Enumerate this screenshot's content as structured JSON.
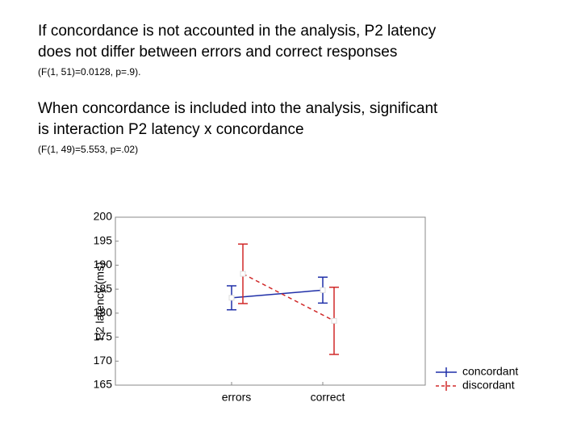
{
  "paragraphs": [
    {
      "lines": [
        "If concordance is not accounted in the analysis, P2 latency",
        "does not differ between errors and correct responses"
      ],
      "note": "(F(1, 51)=0.0128, p=.9)."
    },
    {
      "lines": [
        "When concordance is included into the analysis, significant",
        "is interaction P2 latency x concordance"
      ],
      "note": "(F(1, 49)=5.553, p=.02)"
    }
  ],
  "chart_data": {
    "type": "errorline",
    "y_label": "P2 latency (ms)",
    "categories": [
      "errors",
      "correct"
    ],
    "series": [
      {
        "name": "concordant",
        "color": "#1f2fa8",
        "dash": false,
        "values": [
          183.2,
          184.8
        ],
        "errors": [
          2.5,
          2.7
        ]
      },
      {
        "name": "discordant",
        "color": "#d02828",
        "dash": true,
        "values": [
          188.2,
          178.4
        ],
        "errors": [
          6.2,
          7.0
        ]
      }
    ],
    "ylim": [
      165,
      200
    ],
    "yticks": [
      165,
      170,
      175,
      180,
      185,
      190,
      195,
      200
    ]
  }
}
